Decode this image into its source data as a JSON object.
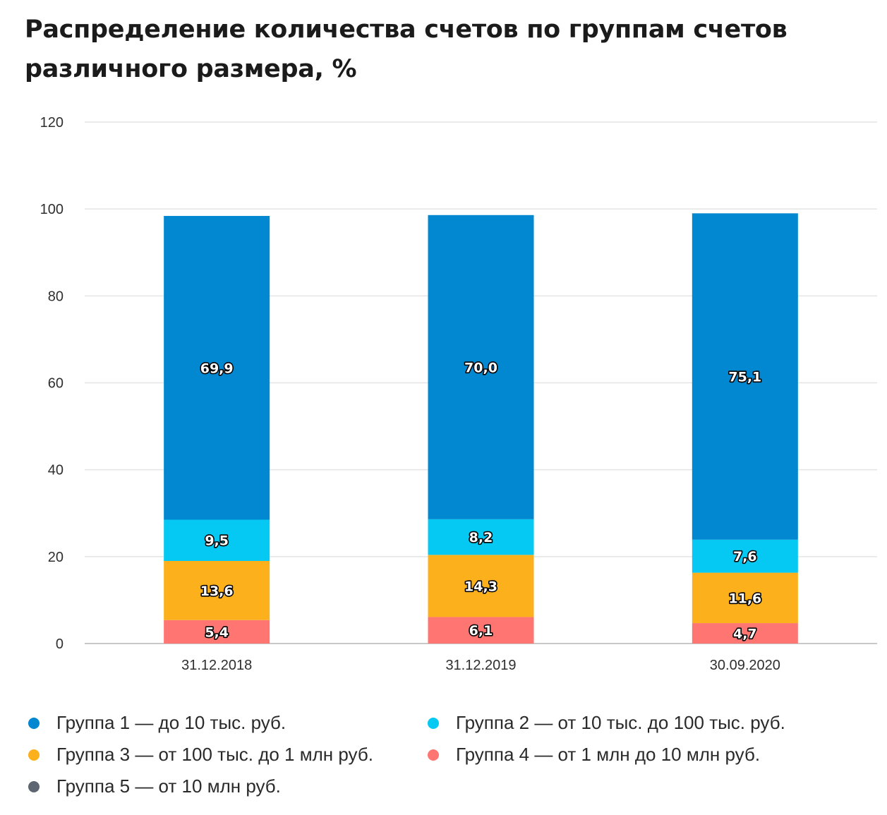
{
  "chart_data": {
    "type": "bar",
    "stacked": true,
    "title": "Распределение количества счетов по группам счетов различного размера, %",
    "categories": [
      "31.12.2018",
      "31.12.2019",
      "30.09.2020"
    ],
    "ylim": [
      0,
      120
    ],
    "yticks": [
      0,
      20,
      40,
      60,
      80,
      100,
      120
    ],
    "grid": true,
    "legend_position": "bottom",
    "series": [
      {
        "name": "Группа 1 — до 10 тыс. руб.",
        "color": "#0288d1",
        "values": [
          69.9,
          70.0,
          75.1
        ],
        "labels": [
          "69,9",
          "70,0",
          "75,1"
        ]
      },
      {
        "name": "Группа 2 — от 10 тыс. до 100 тыс. руб.",
        "color": "#05c9f2",
        "values": [
          9.5,
          8.2,
          7.6
        ],
        "labels": [
          "9,5",
          "8,2",
          "7,6"
        ]
      },
      {
        "name": "Группа 3 — от 100 тыс. до 1 млн руб.",
        "color": "#fbb01c",
        "values": [
          13.6,
          14.3,
          11.6
        ],
        "labels": [
          "13,6",
          "14,3",
          "11,6"
        ]
      },
      {
        "name": "Группа 4 — от 1 млн до 10 млн руб.",
        "color": "#ff7572",
        "values": [
          5.4,
          6.1,
          4.7
        ],
        "labels": [
          "5,4",
          "6,1",
          "4,7"
        ]
      },
      {
        "name": "Группа 5 — от 10 млн руб.",
        "color": "#5d6670",
        "values": [
          0,
          0,
          0
        ],
        "labels": [
          "",
          "",
          ""
        ]
      }
    ]
  }
}
